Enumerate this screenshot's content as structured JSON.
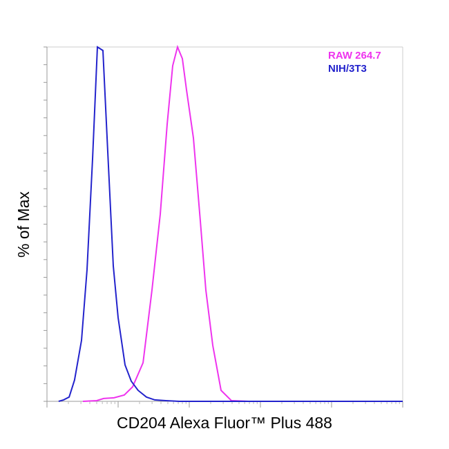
{
  "chart_data": {
    "type": "line",
    "xlabel": "CD204 Alexa Fluor™ Plus 488",
    "ylabel": "% of Max",
    "xscale": "log",
    "xlim": [
      10,
      1000000
    ],
    "xticks": [
      10,
      100,
      1000,
      10000,
      100000,
      1000000
    ],
    "ylim": [
      0,
      100
    ],
    "yticks": [
      0,
      5,
      10,
      15,
      20,
      25,
      30,
      35,
      40,
      45,
      50,
      55,
      60,
      65,
      70,
      75,
      80,
      85,
      90,
      95,
      100
    ],
    "legend": "upper right",
    "series": [
      {
        "name": "RAW 264.7",
        "color": "#ee33ee",
        "x": [
          32.0,
          50.0,
          62.5,
          87.5,
          122,
          160,
          224,
          299,
          391,
          489,
          585,
          684,
          800,
          914,
          1143,
          1430,
          1711,
          2138,
          2797,
          3911,
          6839,
          1000000
        ],
        "values": [
          0,
          0.2,
          0.8,
          1.0,
          1.8,
          4.1,
          10.9,
          31.4,
          52.8,
          78.2,
          94.7,
          100,
          96.7,
          87.9,
          74.3,
          50.9,
          31.4,
          15.8,
          3.1,
          0.2,
          0,
          0
        ]
      },
      {
        "name": "NIH/3T3",
        "color": "#2222cc",
        "x": [
          14.6,
          17.1,
          20.5,
          24.4,
          30.6,
          36.6,
          43.7,
          51.1,
          61.1,
          71.5,
          85.5,
          100,
          125,
          153,
          191,
          250,
          327,
          468,
          731,
          1000000
        ],
        "values": [
          0,
          0.4,
          1.2,
          6.0,
          17.2,
          37.2,
          68.4,
          100,
          99.0,
          70.4,
          38.2,
          23.6,
          10.3,
          5.7,
          3.1,
          1.2,
          0.4,
          0.2,
          0,
          0
        ]
      }
    ]
  }
}
